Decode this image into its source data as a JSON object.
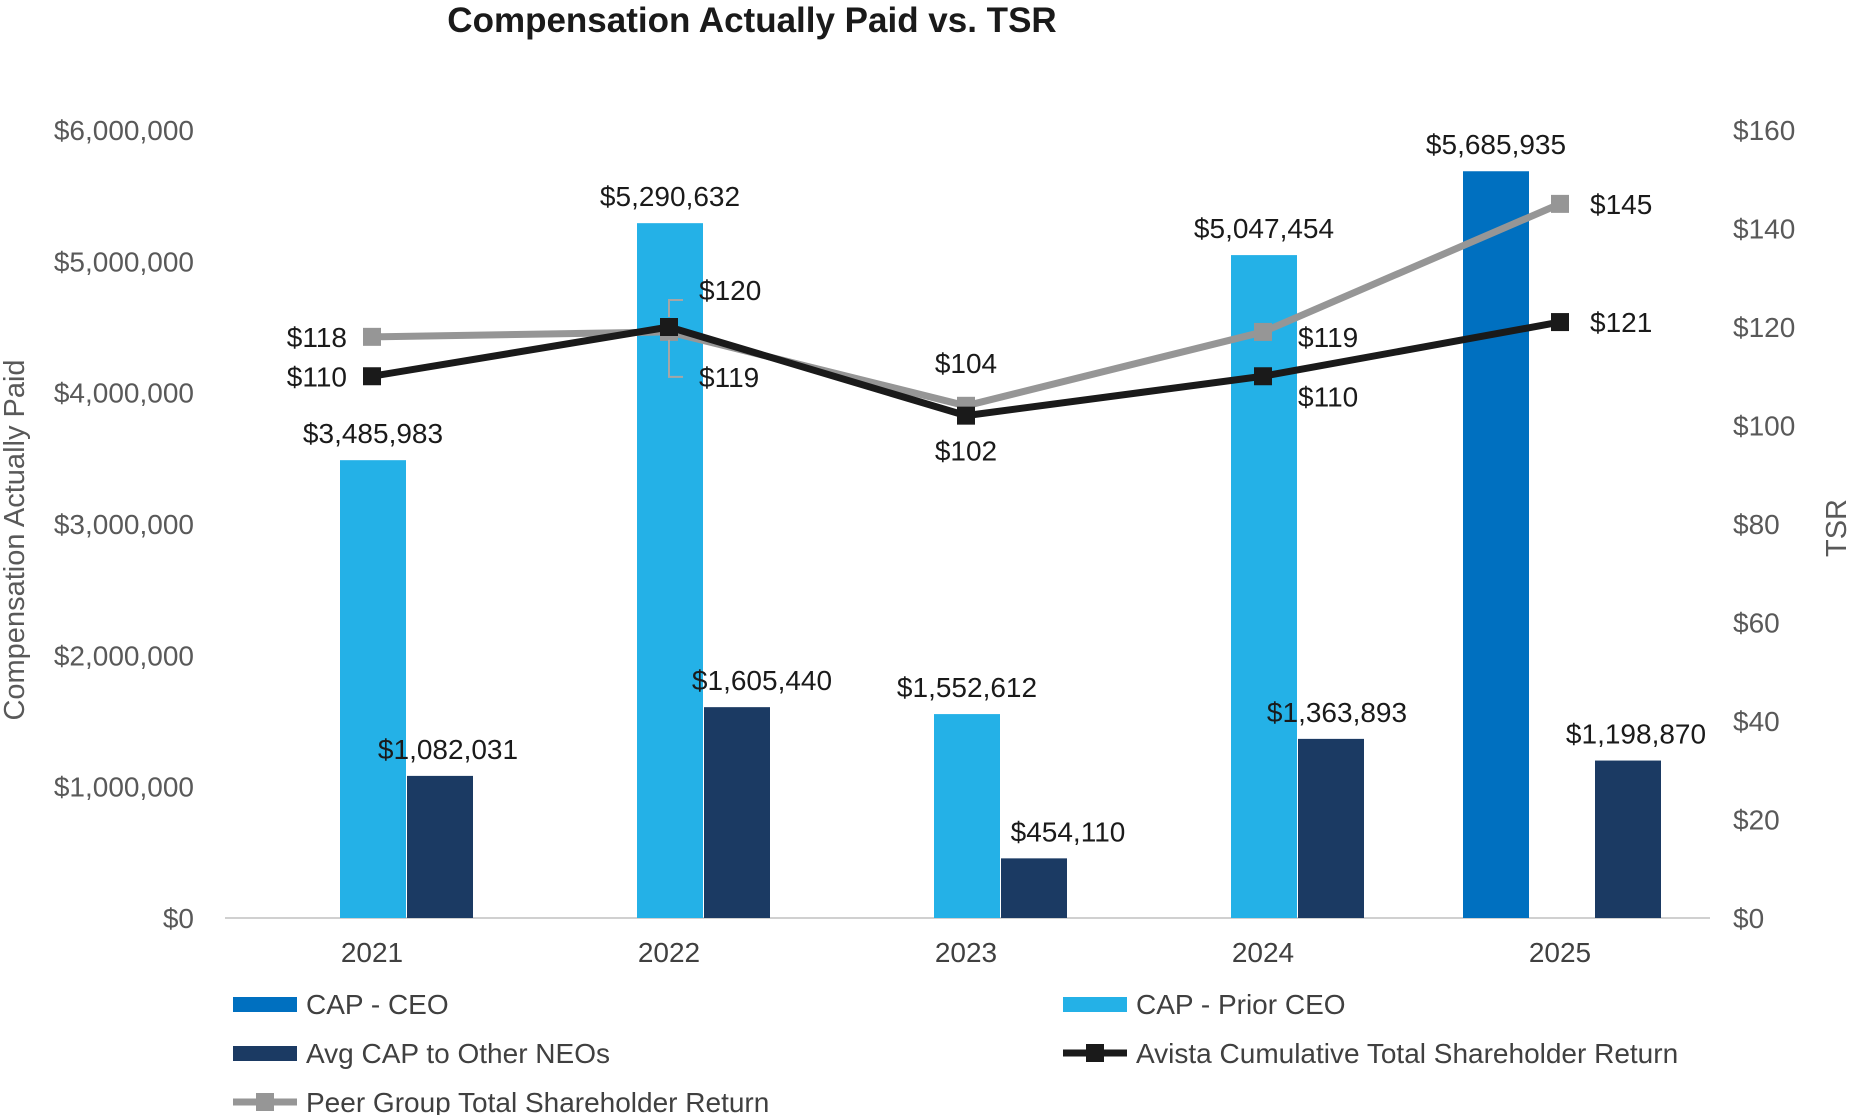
{
  "chart_data": {
    "type": "bar",
    "title": "Compensation Actually Paid vs. TSR",
    "categories": [
      "2021",
      "2022",
      "2023",
      "2024",
      "2025"
    ],
    "ylabel": "Compensation Actually Paid",
    "ylabel_right": "TSR",
    "ylim": [
      0,
      6000000
    ],
    "ylim_right": [
      0,
      160
    ],
    "yticks": [
      "$0",
      "$1,000,000",
      "$2,000,000",
      "$3,000,000",
      "$4,000,000",
      "$5,000,000",
      "$6,000,000"
    ],
    "yticks_right": [
      "$0",
      "$20",
      "$40",
      "$60",
      "$80",
      "$100",
      "$120",
      "$140",
      "$160"
    ],
    "grid": false,
    "legend_position": "bottom",
    "series": [
      {
        "name": "CAP - CEO",
        "kind": "bar",
        "axis": "left",
        "color": "#0070C0",
        "values": [
          null,
          null,
          null,
          null,
          5685935
        ],
        "labels": [
          null,
          null,
          null,
          null,
          "$5,685,935"
        ]
      },
      {
        "name": "CAP - Prior CEO",
        "kind": "bar",
        "axis": "left",
        "color": "#24B1E7",
        "values": [
          3485983,
          5290632,
          1552612,
          5047454,
          null
        ],
        "labels": [
          "$3,485,983",
          "$5,290,632",
          "$1,552,612",
          "$5,047,454",
          null
        ]
      },
      {
        "name": "Avg CAP to Other NEOs",
        "kind": "bar",
        "axis": "left",
        "color": "#1B3A63",
        "values": [
          1082031,
          1605440,
          454110,
          1363893,
          1198870
        ],
        "labels": [
          "$1,082,031",
          "$1,605,440",
          "$454,110",
          "$1,363,893",
          "$1,198,870"
        ]
      },
      {
        "name": "Avista Cumulative Total Shareholder Return",
        "kind": "line",
        "axis": "right",
        "color": "#1a1a1a",
        "values": [
          110,
          120,
          102,
          110,
          121
        ],
        "labels": [
          "$110",
          "$120",
          "$102",
          "$110",
          "$121"
        ]
      },
      {
        "name": "Peer Group Total Shareholder Return",
        "kind": "line",
        "axis": "right",
        "color": "#969696",
        "values": [
          118,
          119,
          104,
          119,
          145
        ],
        "labels": [
          "$118",
          "$119",
          "$104",
          "$119",
          "$145"
        ]
      }
    ]
  }
}
